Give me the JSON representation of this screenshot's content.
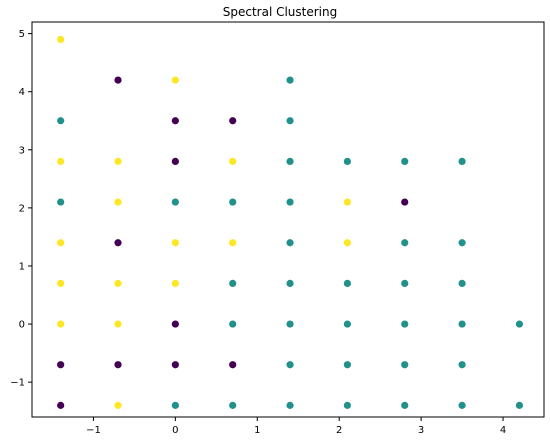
{
  "chart_data": {
    "type": "scatter",
    "title": "Spectral Clustering",
    "xlabel": "",
    "ylabel": "",
    "xlim": [
      -1.75,
      4.5
    ],
    "ylim": [
      -1.6,
      5.2
    ],
    "xticks": [
      -1,
      0,
      1,
      2,
      3,
      4
    ],
    "yticks": [
      -1,
      0,
      1,
      2,
      3,
      4,
      5
    ],
    "xtick_labels": [
      "−1",
      "0",
      "1",
      "2",
      "3",
      "4"
    ],
    "ytick_labels": [
      "−1",
      "0",
      "1",
      "2",
      "3",
      "4",
      "5"
    ],
    "grid": false,
    "legend": false,
    "cluster_colors": {
      "0": "#440154",
      "1": "#21918c",
      "2": "#fde725"
    },
    "points": [
      {
        "x": -1.4,
        "y": 4.9,
        "c": 2
      },
      {
        "x": -0.7,
        "y": 4.2,
        "c": 0
      },
      {
        "x": 0.0,
        "y": 4.2,
        "c": 2
      },
      {
        "x": 1.4,
        "y": 4.2,
        "c": 1
      },
      {
        "x": -1.4,
        "y": 3.5,
        "c": 1
      },
      {
        "x": 0.0,
        "y": 3.5,
        "c": 0
      },
      {
        "x": 0.7,
        "y": 3.5,
        "c": 0
      },
      {
        "x": 1.4,
        "y": 3.5,
        "c": 1
      },
      {
        "x": -1.4,
        "y": 2.8,
        "c": 2
      },
      {
        "x": -0.7,
        "y": 2.8,
        "c": 2
      },
      {
        "x": 0.0,
        "y": 2.8,
        "c": 0
      },
      {
        "x": 0.7,
        "y": 2.8,
        "c": 2
      },
      {
        "x": 1.4,
        "y": 2.8,
        "c": 1
      },
      {
        "x": 2.1,
        "y": 2.8,
        "c": 1
      },
      {
        "x": 2.8,
        "y": 2.8,
        "c": 1
      },
      {
        "x": 3.5,
        "y": 2.8,
        "c": 1
      },
      {
        "x": -1.4,
        "y": 2.1,
        "c": 1
      },
      {
        "x": -0.7,
        "y": 2.1,
        "c": 2
      },
      {
        "x": 0.0,
        "y": 2.1,
        "c": 1
      },
      {
        "x": 0.7,
        "y": 2.1,
        "c": 1
      },
      {
        "x": 1.4,
        "y": 2.1,
        "c": 1
      },
      {
        "x": 2.1,
        "y": 2.1,
        "c": 2
      },
      {
        "x": 2.8,
        "y": 2.1,
        "c": 0
      },
      {
        "x": -1.4,
        "y": 1.4,
        "c": 2
      },
      {
        "x": -0.7,
        "y": 1.4,
        "c": 0
      },
      {
        "x": 0.0,
        "y": 1.4,
        "c": 2
      },
      {
        "x": 0.7,
        "y": 1.4,
        "c": 2
      },
      {
        "x": 1.4,
        "y": 1.4,
        "c": 1
      },
      {
        "x": 2.1,
        "y": 1.4,
        "c": 2
      },
      {
        "x": 2.8,
        "y": 1.4,
        "c": 1
      },
      {
        "x": 3.5,
        "y": 1.4,
        "c": 1
      },
      {
        "x": -1.4,
        "y": 0.7,
        "c": 2
      },
      {
        "x": -0.7,
        "y": 0.7,
        "c": 2
      },
      {
        "x": 0.0,
        "y": 0.7,
        "c": 2
      },
      {
        "x": 0.7,
        "y": 0.7,
        "c": 1
      },
      {
        "x": 1.4,
        "y": 0.7,
        "c": 1
      },
      {
        "x": 2.1,
        "y": 0.7,
        "c": 1
      },
      {
        "x": 2.8,
        "y": 0.7,
        "c": 1
      },
      {
        "x": 3.5,
        "y": 0.7,
        "c": 1
      },
      {
        "x": -1.4,
        "y": 0.0,
        "c": 2
      },
      {
        "x": -0.7,
        "y": 0.0,
        "c": 2
      },
      {
        "x": 0.0,
        "y": 0.0,
        "c": 0
      },
      {
        "x": 0.7,
        "y": 0.0,
        "c": 1
      },
      {
        "x": 1.4,
        "y": 0.0,
        "c": 1
      },
      {
        "x": 2.1,
        "y": 0.0,
        "c": 1
      },
      {
        "x": 2.8,
        "y": 0.0,
        "c": 1
      },
      {
        "x": 3.5,
        "y": 0.0,
        "c": 1
      },
      {
        "x": 4.2,
        "y": 0.0,
        "c": 1
      },
      {
        "x": -1.4,
        "y": -0.7,
        "c": 0
      },
      {
        "x": -0.7,
        "y": -0.7,
        "c": 0
      },
      {
        "x": 0.0,
        "y": -0.7,
        "c": 0
      },
      {
        "x": 0.7,
        "y": -0.7,
        "c": 0
      },
      {
        "x": 1.4,
        "y": -0.7,
        "c": 1
      },
      {
        "x": 2.1,
        "y": -0.7,
        "c": 1
      },
      {
        "x": 2.8,
        "y": -0.7,
        "c": 1
      },
      {
        "x": 3.5,
        "y": -0.7,
        "c": 1
      },
      {
        "x": -1.4,
        "y": -1.4,
        "c": 0
      },
      {
        "x": -0.7,
        "y": -1.4,
        "c": 2
      },
      {
        "x": 0.0,
        "y": -1.4,
        "c": 1
      },
      {
        "x": 0.7,
        "y": -1.4,
        "c": 1
      },
      {
        "x": 1.4,
        "y": -1.4,
        "c": 1
      },
      {
        "x": 2.1,
        "y": -1.4,
        "c": 1
      },
      {
        "x": 2.8,
        "y": -1.4,
        "c": 1
      },
      {
        "x": 3.5,
        "y": -1.4,
        "c": 1
      },
      {
        "x": 4.2,
        "y": -1.4,
        "c": 1
      }
    ]
  }
}
